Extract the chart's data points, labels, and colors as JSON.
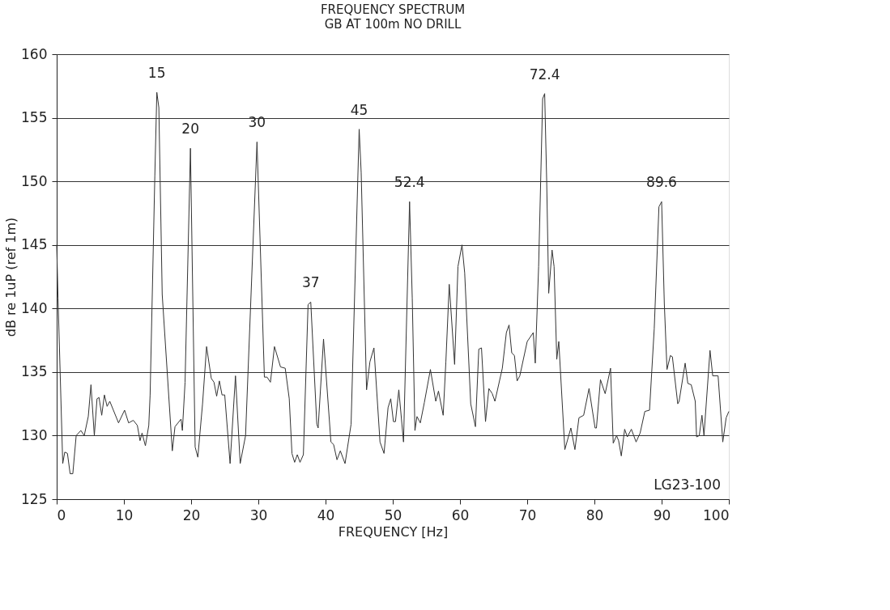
{
  "chart_data": {
    "type": "line",
    "title": "FREQUENCY SPECTRUM",
    "subtitle": "GB AT 100m NO DRILL",
    "xlabel": "FREQUENCY [Hz]",
    "ylabel": "dB re 1uP (ref 1m)",
    "x": [
      0,
      0.2,
      0.9,
      1.2,
      1.6,
      2.0,
      2.4,
      2.9,
      3.6,
      4.1,
      4.7,
      5.1,
      5.6,
      6.0,
      6.3,
      6.7,
      7.1,
      7.5,
      7.9,
      9.2,
      10.1,
      10.7,
      11.4,
      12.0,
      12.4,
      12.7,
      13.2,
      13.7,
      13.9,
      14.6,
      14.9,
      15.2,
      15.7,
      17.2,
      17.6,
      18.5,
      18.7,
      19.1,
      19.9,
      20.6,
      21.0,
      21.7,
      22.3,
      23.0,
      23.4,
      23.8,
      24.2,
      24.6,
      25.0,
      25.8,
      26.6,
      27.3,
      28.1,
      29.8,
      30.9,
      31.3,
      31.8,
      32.4,
      33.3,
      34.0,
      34.6,
      35.0,
      35.4,
      35.8,
      36.2,
      36.7,
      37.4,
      37.8,
      38.7,
      38.9,
      39.7,
      40.8,
      41.2,
      41.7,
      42.2,
      42.9,
      43.8,
      45.0,
      45.3,
      46.1,
      46.6,
      47.2,
      48.1,
      48.7,
      49.3,
      49.7,
      50.1,
      50.4,
      50.9,
      51.6,
      52.5,
      52.9,
      53.3,
      53.6,
      54.1,
      54.7,
      55.6,
      56.4,
      56.8,
      57.5,
      57.9,
      58.4,
      59.2,
      59.7,
      60.3,
      60.7,
      61.6,
      62.3,
      62.8,
      63.2,
      63.8,
      64.3,
      64.8,
      65.2,
      66.3,
      66.9,
      67.3,
      67.7,
      68.1,
      68.5,
      68.9,
      70.0,
      70.9,
      71.2,
      71.7,
      72.3,
      72.6,
      72.9,
      73.2,
      73.7,
      74.0,
      74.4,
      74.7,
      75.6,
      76.5,
      77.1,
      77.7,
      78.4,
      79.2,
      80.1,
      80.3,
      80.9,
      81.6,
      82.4,
      82.8,
      83.3,
      83.6,
      84.0,
      84.5,
      84.9,
      85.5,
      86.2,
      86.8,
      87.5,
      88.2,
      88.9,
      89.6,
      90.0,
      90.4,
      90.8,
      91.3,
      91.6,
      92.4,
      92.6,
      93.5,
      93.9,
      94.4,
      95.0,
      95.2,
      95.6,
      96.0,
      96.3,
      97.2,
      97.6,
      98.4,
      99.1,
      99.6,
      100
    ],
    "series": [
      {
        "color": "#333333",
        "values": [
          145,
          140.8,
          127.8,
          128.7,
          128.6,
          127.0,
          127.0,
          130.0,
          130.4,
          130.0,
          131.5,
          134.0,
          130.0,
          132.9,
          133.0,
          131.6,
          133.2,
          132.3,
          132.7,
          131.0,
          132.0,
          131.0,
          131.2,
          130.8,
          129.6,
          130.2,
          129.2,
          130.8,
          133.2,
          150.4,
          157.0,
          155.8,
          141.1,
          128.8,
          130.7,
          131.3,
          130.4,
          134.2,
          152.6,
          129.1,
          128.3,
          132.5,
          137.0,
          134.5,
          134.2,
          133.1,
          134.3,
          133.2,
          133.2,
          127.8,
          134.7,
          127.8,
          130.0,
          153.1,
          134.6,
          134.6,
          134.2,
          137.0,
          135.4,
          135.3,
          132.9,
          128.6,
          127.9,
          128.5,
          127.9,
          128.5,
          140.3,
          140.5,
          130.9,
          130.6,
          137.6,
          129.5,
          129.3,
          128.1,
          128.8,
          127.8,
          130.9,
          154.1,
          150.7,
          133.6,
          135.8,
          136.9,
          129.5,
          128.6,
          132.2,
          132.9,
          131.1,
          131.1,
          133.6,
          129.5,
          148.4,
          140.8,
          130.4,
          131.5,
          131.0,
          132.6,
          135.2,
          132.7,
          133.5,
          131.6,
          135.8,
          141.9,
          135.6,
          143.3,
          145.0,
          142.8,
          132.5,
          130.7,
          136.8,
          136.9,
          131.1,
          133.7,
          133.3,
          132.7,
          135.3,
          138.1,
          138.7,
          136.5,
          136.3,
          134.3,
          134.7,
          137.4,
          138.1,
          135.7,
          143.3,
          156.5,
          156.9,
          150.0,
          141.2,
          144.6,
          143.3,
          136.0,
          137.4,
          128.9,
          130.6,
          128.9,
          131.4,
          131.6,
          133.7,
          130.6,
          130.6,
          134.4,
          133.3,
          135.3,
          129.4,
          130.0,
          129.6,
          128.4,
          130.5,
          129.9,
          130.5,
          129.5,
          130.2,
          131.9,
          132.0,
          138.4,
          148.0,
          148.4,
          140.4,
          135.2,
          136.3,
          136.2,
          132.5,
          132.7,
          135.7,
          134.1,
          134.0,
          132.7,
          129.9,
          130.0,
          131.6,
          130.0,
          136.7,
          134.7,
          134.7,
          129.5,
          131.4,
          131.9
        ]
      }
    ],
    "xlim": [
      0,
      100
    ],
    "xticks": [
      0,
      10,
      20,
      30,
      40,
      50,
      60,
      70,
      80,
      90,
      100
    ],
    "ylim": [
      125,
      160
    ],
    "yticks": [
      125,
      130,
      135,
      140,
      145,
      150,
      155,
      160
    ],
    "grid": "y",
    "marker": "none",
    "line_style": "solid",
    "annotations": [
      {
        "text": "15",
        "x": 14.9,
        "y": 157.0
      },
      {
        "text": "20",
        "x": 19.9,
        "y": 152.6
      },
      {
        "text": "30",
        "x": 29.8,
        "y": 153.1
      },
      {
        "text": "37",
        "x": 37.8,
        "y": 140.5
      },
      {
        "text": "45",
        "x": 45.0,
        "y": 154.1
      },
      {
        "text": "52.4",
        "x": 52.5,
        "y": 148.4
      },
      {
        "text": "72.4",
        "x": 72.6,
        "y": 156.9
      },
      {
        "text": "89.6",
        "x": 90.0,
        "y": 148.4
      },
      "LG23-100"
    ]
  }
}
